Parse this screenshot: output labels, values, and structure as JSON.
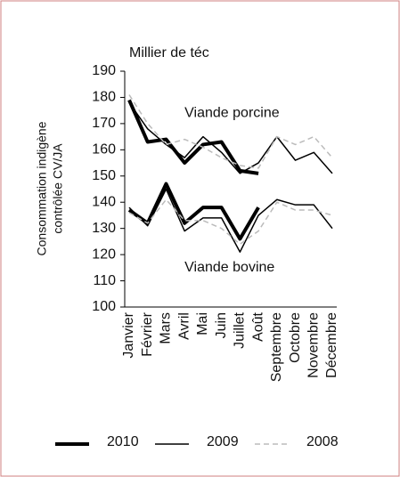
{
  "chart_data": {
    "type": "line",
    "unit_label": "Millier de téc",
    "ylabel": [
      "Consommation indigène",
      "contrôlée CV/JA"
    ],
    "categories": [
      "Janvier",
      "Février",
      "Mars",
      "Avril",
      "Mai",
      "Juin",
      "Juillet",
      "Août",
      "Septembre",
      "Octobre",
      "Novembre",
      "Décembre"
    ],
    "ylim": [
      100,
      190
    ],
    "yticks": [
      100,
      110,
      120,
      130,
      140,
      150,
      160,
      170,
      180,
      190
    ],
    "annotations": [
      {
        "text": "Viande porcine",
        "x": "Avril",
        "y": 174
      },
      {
        "text": "Viande bovine",
        "x": "Avril",
        "y": 115
      }
    ],
    "series": [
      {
        "name": "2010",
        "color": "#000000",
        "width": 4,
        "dash": "none",
        "values": [
          179,
          163,
          164,
          155,
          162,
          163,
          152,
          151,
          null,
          null,
          null,
          null
        ]
      },
      {
        "name": "2009",
        "color": "#000000",
        "width": 1.5,
        "dash": "none",
        "values": [
          178,
          168,
          162,
          157,
          165,
          159,
          151,
          155,
          165,
          156,
          159,
          151
        ]
      },
      {
        "name": "2008",
        "color": "#bbbbbb",
        "width": 1.5,
        "dash": "6 4",
        "values": [
          181,
          170,
          162,
          164,
          161,
          157,
          154,
          153,
          165,
          162,
          165,
          157
        ]
      },
      {
        "name": "2010",
        "color": "#000000",
        "width": 4,
        "dash": "none",
        "values": [
          137,
          132,
          147,
          132,
          138,
          138,
          126,
          138,
          null,
          null,
          null,
          null
        ]
      },
      {
        "name": "2009",
        "color": "#000000",
        "width": 1.5,
        "dash": "none",
        "values": [
          138,
          131,
          145,
          129,
          134,
          134,
          121,
          135,
          141,
          139,
          139,
          130
        ]
      },
      {
        "name": "2008",
        "color": "#bbbbbb",
        "width": 1.5,
        "dash": "6 4",
        "values": [
          136,
          132,
          141,
          133,
          133,
          130,
          124,
          129,
          140,
          137,
          137,
          135
        ]
      }
    ]
  }
}
